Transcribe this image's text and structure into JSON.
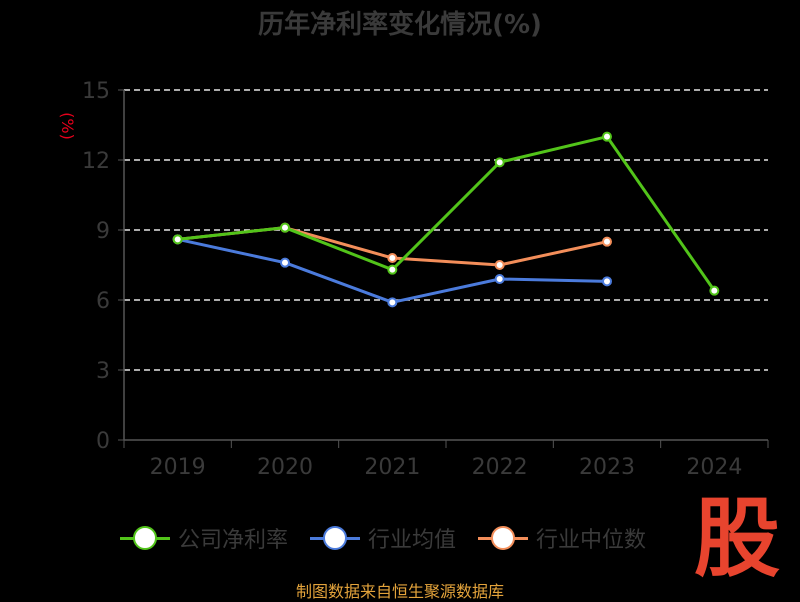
{
  "title": "历年净利率变化情况(%)",
  "source": "制图数据来自恒生聚源数据库",
  "logo_text": "股",
  "chart_data": {
    "type": "line",
    "title": "历年净利率变化情况(%)",
    "ylabel": "(%)",
    "categories": [
      "2019",
      "2020",
      "2021",
      "2022",
      "2023",
      "2024"
    ],
    "yticks": [
      "0",
      "3",
      "6",
      "9",
      "12",
      "15"
    ],
    "ylim": [
      0,
      15
    ],
    "grid": true,
    "legend_position": "bottom",
    "series": [
      {
        "name": "公司净利率",
        "color": "#52c41a",
        "values": [
          8.6,
          9.1,
          7.3,
          11.9,
          13.0,
          6.4
        ]
      },
      {
        "name": "行业均值",
        "color": "#4b7bdc",
        "values": [
          8.6,
          7.6,
          5.9,
          6.9,
          6.8,
          null
        ]
      },
      {
        "name": "行业中位数",
        "color": "#f38e5a",
        "values": [
          8.6,
          9.1,
          7.8,
          7.5,
          8.5,
          null
        ]
      }
    ]
  }
}
